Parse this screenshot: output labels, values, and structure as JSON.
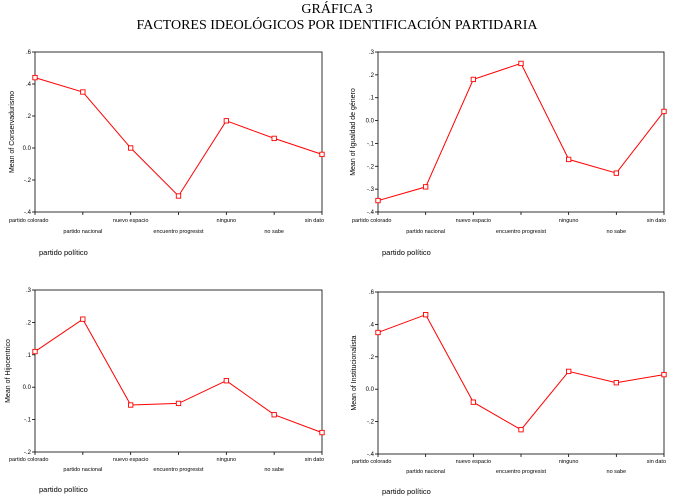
{
  "figure": {
    "title_line1": "GRÁFICA 3",
    "title_line2": "FACTORES IDEOLÓGICOS POR IDENTIFICACIÓN PARTIDARIA"
  },
  "colors": {
    "line": "#ff0000",
    "frame": "#000000",
    "background": "#ffffff"
  },
  "chart_data": [
    {
      "type": "line",
      "xlabel": "partido político",
      "ylabel": "Mean of Conservadurismo",
      "ylim": [
        -0.4,
        0.6
      ],
      "yticks": [
        ".6",
        ".4",
        ".2",
        "0.0",
        "-.2",
        "-.4"
      ],
      "categories": [
        "partido colorado",
        "partido nacional",
        "nuevo espacio",
        "encuentro progresist",
        "ninguno",
        "no sabe",
        "sin dato"
      ],
      "values": [
        0.44,
        0.35,
        0.0,
        -0.3,
        0.17,
        0.06,
        -0.04
      ],
      "grid": false
    },
    {
      "type": "line",
      "xlabel": "partido político",
      "ylabel": "Mean of Igualdad de género",
      "ylim": [
        -0.4,
        0.3
      ],
      "yticks": [
        ".3",
        ".2",
        ".1",
        "0.0",
        "-.1",
        "-.2",
        "-.3",
        "-.4"
      ],
      "categories": [
        "partido colorado",
        "partido nacional",
        "nuevo espacio",
        "encuentro progresist",
        "ninguno",
        "no sabe",
        "sin dato"
      ],
      "values": [
        -0.35,
        -0.29,
        0.18,
        0.25,
        -0.17,
        -0.23,
        0.04
      ],
      "grid": false
    },
    {
      "type": "line",
      "xlabel": "partido político",
      "ylabel": "Mean of Hijocentrico",
      "ylim": [
        -0.2,
        0.3
      ],
      "yticks": [
        ".3",
        ".2",
        ".1",
        "0.0",
        "-.1",
        "-.2"
      ],
      "categories": [
        "partido colorado",
        "partido nacional",
        "nuevo espacio",
        "encuentro progresist",
        "ninguno",
        "no sabe",
        "sin dato"
      ],
      "values": [
        0.11,
        0.21,
        -0.055,
        -0.05,
        0.02,
        -0.085,
        -0.14
      ],
      "grid": false
    },
    {
      "type": "line",
      "xlabel": "partido político",
      "ylabel": "Mean of Institucionalista",
      "ylim": [
        -0.4,
        0.6
      ],
      "yticks": [
        ".6",
        ".4",
        ".2",
        "0.0",
        "-.2",
        "-.4"
      ],
      "categories": [
        "partido colorado",
        "partido nacional",
        "nuevo espacio",
        "encuentro progresist",
        "ninguno",
        "no sabe",
        "sin dato"
      ],
      "values": [
        0.35,
        0.46,
        -0.08,
        -0.25,
        0.11,
        0.04,
        0.09
      ],
      "grid": false
    }
  ]
}
